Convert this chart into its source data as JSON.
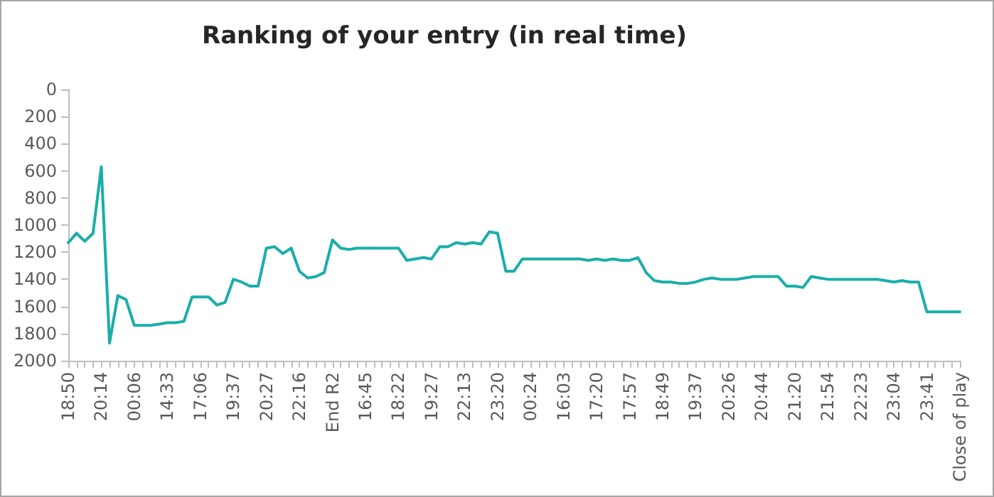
{
  "chart_data": {
    "type": "line",
    "title": "Ranking of your entry (in real time)",
    "categories": [
      "18:50",
      null,
      null,
      null,
      "20:14",
      null,
      null,
      null,
      "00:06",
      null,
      null,
      null,
      "14:33",
      null,
      null,
      null,
      "17:06",
      null,
      null,
      null,
      "19:37",
      null,
      null,
      null,
      "20:27",
      null,
      null,
      null,
      "22:16",
      null,
      null,
      null,
      "End R2",
      null,
      null,
      null,
      "16:45",
      null,
      null,
      null,
      "18:22",
      null,
      null,
      null,
      "19:27",
      null,
      null,
      null,
      "22:13",
      null,
      null,
      null,
      "23:20",
      null,
      null,
      null,
      "00:24",
      null,
      null,
      null,
      "16:03",
      null,
      null,
      null,
      "17:20",
      null,
      null,
      null,
      "17:57",
      null,
      null,
      null,
      "18:49",
      null,
      null,
      null,
      "19:37",
      null,
      null,
      null,
      "20:26",
      null,
      null,
      null,
      "20:44",
      null,
      null,
      null,
      "21:20",
      null,
      null,
      null,
      "21:54",
      null,
      null,
      null,
      "22:23",
      null,
      null,
      null,
      "23:04",
      null,
      null,
      null,
      "23:41",
      null,
      null,
      null,
      "Close of play"
    ],
    "series": [
      {
        "color": "#1aaea9",
        "values": [
          1130,
          1060,
          1120,
          1060,
          570,
          1870,
          1520,
          1550,
          1740,
          1740,
          1740,
          1730,
          1720,
          1720,
          1710,
          1530,
          1530,
          1530,
          1590,
          1570,
          1400,
          1420,
          1450,
          1450,
          1170,
          1160,
          1210,
          1170,
          1340,
          1390,
          1380,
          1350,
          1110,
          1170,
          1180,
          1170,
          1170,
          1170,
          1170,
          1170,
          1170,
          1260,
          1250,
          1240,
          1250,
          1160,
          1160,
          1130,
          1140,
          1130,
          1140,
          1050,
          1060,
          1340,
          1340,
          1250,
          1250,
          1250,
          1250,
          1250,
          1250,
          1250,
          1250,
          1260,
          1250,
          1260,
          1250,
          1260,
          1260,
          1240,
          1350,
          1410,
          1420,
          1420,
          1430,
          1430,
          1420,
          1400,
          1390,
          1400,
          1400,
          1400,
          1390,
          1380,
          1380,
          1380,
          1380,
          1450,
          1450,
          1460,
          1380,
          1390,
          1400,
          1400,
          1400,
          1400,
          1400,
          1400,
          1400,
          1410,
          1420,
          1410,
          1420,
          1420,
          1640,
          1640,
          1640,
          1640,
          1640
        ]
      }
    ],
    "ylim": [
      2000,
      0
    ],
    "yticks": [
      0,
      200,
      400,
      600,
      800,
      {
        "value": 1000,
        "label": "1000"
      },
      {
        "value": 1200,
        "label": "1200"
      },
      {
        "value": 1400,
        "label": "1400"
      },
      {
        "value": 1600,
        "label": "1600"
      },
      {
        "value": 1800,
        "label": "1800"
      },
      {
        "value": 2000,
        "label": "2000"
      }
    ],
    "grid": false,
    "marker": "none",
    "line_style": "solid"
  }
}
